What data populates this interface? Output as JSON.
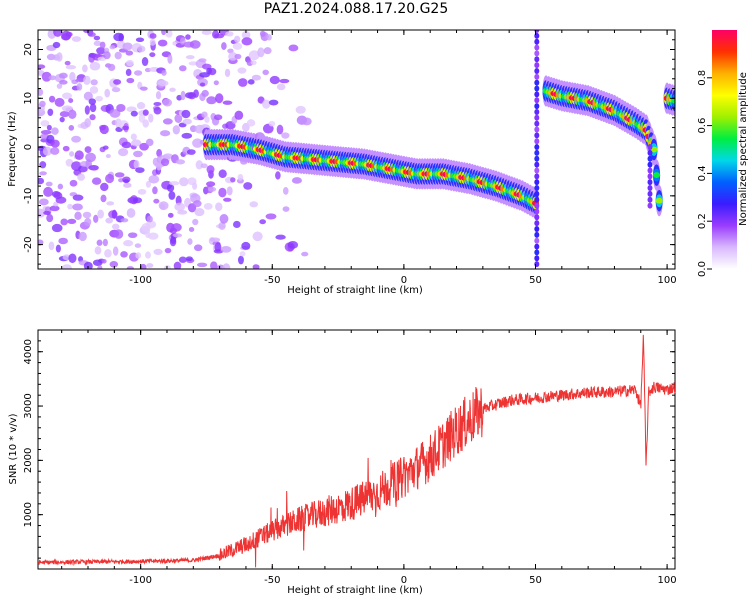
{
  "title": "PAZ1.2024.088.17.20.G25",
  "colors": {
    "snr_line": "#ee3333",
    "colormap": [
      "#ffffff",
      "#d9b8ff",
      "#9a3cff",
      "#3a1cff",
      "#0060ff",
      "#00d8e8",
      "#00ee40",
      "#a0f000",
      "#ffff00",
      "#ffb000",
      "#ff3000",
      "#ff0066"
    ]
  },
  "chart_data": [
    {
      "type": "heatmap",
      "title": "",
      "xlabel": "Height of straight line (km)",
      "ylabel": "Frequency (Hz)",
      "xlim": [
        -139,
        103
      ],
      "ylim": [
        -25,
        24
      ],
      "x_ticks": [
        -100,
        -50,
        0,
        50,
        100
      ],
      "y_ticks": [
        -20,
        -10,
        0,
        10,
        20
      ],
      "colorbar": {
        "label": "Normalized spectral amplitude",
        "range": [
          0,
          1
        ],
        "ticks": [
          0.0,
          0.2,
          0.4,
          0.6,
          0.8
        ]
      },
      "ridge": {
        "description": "frequency of peak spectral amplitude vs height",
        "segments": [
          {
            "x": [
              -75,
              -65,
              -55,
              -45,
              -35,
              -25,
              -15,
              -5,
              5,
              15,
              25,
              35,
              45,
              50
            ],
            "y": [
              0.5,
              0.5,
              -0.5,
              -2.0,
              -2.5,
              -3.0,
              -3.5,
              -4.5,
              -5.5,
              -5.5,
              -6.5,
              -8.0,
              -10.0,
              -11.5
            ]
          },
          {
            "x": [
              54,
              60,
              70,
              80,
              88,
              92,
              95,
              97
            ],
            "y": [
              11.5,
              10.5,
              9.5,
              7.5,
              5.0,
              3.5,
              -0.5,
              -11.0
            ]
          },
          {
            "x": [
              100,
              103
            ],
            "y": [
              10.0,
              9.5
            ]
          }
        ]
      }
    },
    {
      "type": "line",
      "title": "",
      "xlabel": "Height of straight line (km)",
      "ylabel": "SNR (10 * v/v)",
      "xlim": [
        -139,
        103
      ],
      "ylim": [
        0,
        4400
      ],
      "x_ticks": [
        -100,
        -50,
        0,
        50,
        100
      ],
      "y_ticks": [
        1000,
        2000,
        3000,
        4000
      ],
      "series": [
        {
          "x": [
            -139,
            -120,
            -100,
            -80,
            -70,
            -60,
            -50,
            -40,
            -30,
            -20,
            -10,
            0,
            10,
            20,
            30,
            40,
            50,
            60,
            70,
            80,
            88,
            90,
            91,
            92,
            93,
            95,
            100,
            103
          ],
          "y": [
            120,
            130,
            140,
            160,
            250,
            450,
            700,
            900,
            1050,
            1200,
            1400,
            1700,
            2050,
            2550,
            2950,
            3100,
            3150,
            3200,
            3250,
            3260,
            3300,
            3000,
            4300,
            1850,
            3250,
            3350,
            3300,
            3350
          ]
        }
      ]
    }
  ]
}
